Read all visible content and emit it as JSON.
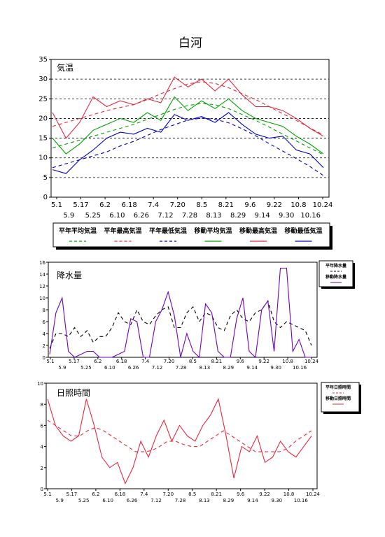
{
  "title": "白河",
  "chart_data": [
    {
      "type": "line",
      "title": "気温",
      "ylim": [
        0,
        35
      ],
      "yticks": [
        0,
        5,
        10,
        15,
        20,
        25,
        30,
        35
      ],
      "grid": "horizontal dashed at 5-unit intervals",
      "x": {
        "start": "5.1",
        "end": "10.31",
        "labels_upper": [
          "5.1",
          "5.17",
          "6.2",
          "6.18",
          "7.4",
          "7.20",
          "8.5",
          "8.21",
          "9.6",
          "9.22",
          "10.8",
          "10.24"
        ],
        "labels_lower": [
          "5.9",
          "5.25",
          "6.10",
          "6.26",
          "7.12",
          "7.28",
          "8.13",
          "8.29",
          "9.14",
          "9.30",
          "10.16"
        ]
      },
      "legend": {
        "placement": "bottom",
        "entries": [
          {
            "label": "平年平均気温",
            "color": "#00a000",
            "dash": true
          },
          {
            "label": "平年最高気温",
            "color": "#e8283c",
            "dash": true
          },
          {
            "label": "平年最低気温",
            "color": "#0000c8",
            "dash": true
          },
          {
            "label": "移動平均気温",
            "color": "#00a000",
            "dash": false
          },
          {
            "label": "移動最高気温",
            "color": "#e8283c",
            "dash": false
          },
          {
            "label": "移動最低気温",
            "color": "#0000c8",
            "dash": false
          }
        ]
      },
      "series": [
        {
          "name": "平年平均気温",
          "color": "#00a000",
          "dash": true,
          "values": [
            12.5,
            13.5,
            14.5,
            15.5,
            16.5,
            17.5,
            18.5,
            19.8,
            21.0,
            22.3,
            23.3,
            23.8,
            23.5,
            22.5,
            21.0,
            19.5,
            17.8,
            16.0,
            14.3,
            12.5,
            10.8
          ]
        },
        {
          "name": "平年最高気温",
          "color": "#e8283c",
          "dash": true,
          "values": [
            18.0,
            19.0,
            20.0,
            21.0,
            22.0,
            22.8,
            23.5,
            24.8,
            26.3,
            27.6,
            28.8,
            29.3,
            28.9,
            27.8,
            26.3,
            24.8,
            23.0,
            21.2,
            19.5,
            17.6,
            15.8
          ]
        },
        {
          "name": "平年最低気温",
          "color": "#0000c8",
          "dash": true,
          "values": [
            7.5,
            8.5,
            9.5,
            10.5,
            11.5,
            13.0,
            14.2,
            15.7,
            17.2,
            18.4,
            19.6,
            20.1,
            19.8,
            18.9,
            17.4,
            15.6,
            13.6,
            11.7,
            9.8,
            7.8,
            5.5
          ]
        },
        {
          "name": "移動平均気温",
          "color": "#00a000",
          "dash": false,
          "values": [
            15.0,
            11.0,
            13.5,
            17.0,
            18.5,
            20.0,
            19.0,
            21.5,
            19.5,
            25.5,
            22.0,
            24.5,
            22.5,
            25.0,
            22.0,
            20.0,
            19.0,
            18.0,
            15.5,
            13.5,
            11.0
          ]
        },
        {
          "name": "移動最高気温",
          "color": "#e8283c",
          "dash": false,
          "values": [
            21.5,
            15.0,
            19.0,
            25.5,
            23.0,
            24.5,
            23.5,
            25.0,
            24.0,
            30.5,
            28.0,
            30.0,
            27.0,
            30.0,
            26.0,
            23.0,
            23.0,
            22.0,
            20.0,
            17.5,
            15.5
          ]
        },
        {
          "name": "移動最低気温",
          "color": "#0000c8",
          "dash": false,
          "values": [
            7.0,
            6.0,
            9.5,
            12.0,
            15.0,
            16.5,
            16.0,
            17.5,
            16.5,
            21.0,
            19.5,
            20.5,
            19.0,
            21.5,
            18.5,
            16.0,
            15.0,
            15.5,
            12.0,
            11.0,
            7.5
          ]
        }
      ]
    },
    {
      "type": "line",
      "title": "降水量",
      "ylim": [
        0,
        16
      ],
      "yticks": [
        0,
        2,
        4,
        6,
        8,
        10,
        12,
        14,
        16
      ],
      "x": {
        "start": "5.1",
        "end": "10.31",
        "labels_upper": [
          "5.1",
          "5.17",
          "6.2",
          "6.18",
          "7.4",
          "7.20",
          "8.5",
          "8.21",
          "9.6",
          "9.22",
          "10.8",
          "10.24"
        ],
        "labels_lower": [
          "5.9",
          "5.25",
          "6.10",
          "6.26",
          "7.12",
          "7.28",
          "8.13",
          "8.29",
          "9.14",
          "9.30",
          "10.16"
        ]
      },
      "legend": {
        "placement": "right",
        "entries": [
          {
            "label": "平年降水量",
            "color": "#000000",
            "dash": true
          },
          {
            "label": "移動降水量",
            "color": "#7000c0",
            "dash": false
          }
        ]
      },
      "series": [
        {
          "name": "平年降水量",
          "color": "#000000",
          "dash": true,
          "values": [
            1.5,
            4.0,
            4.0,
            3.5,
            5.0,
            3.5,
            4.5,
            2.5,
            3.5,
            3.5,
            5.0,
            7.5,
            6.0,
            5.5,
            8.0,
            6.0,
            5.5,
            7.0,
            8.0,
            8.5,
            5.0,
            5.0,
            7.5,
            8.5,
            6.0,
            7.5,
            7.0,
            5.0,
            4.5,
            7.0,
            8.0,
            6.5,
            6.0,
            7.5,
            8.0,
            9.5,
            6.0,
            5.0,
            6.0,
            5.5,
            5.0,
            4.5,
            2.0
          ]
        },
        {
          "name": "移動降水量",
          "color": "#7000c0",
          "dash": false,
          "values": [
            0.5,
            7.5,
            10.0,
            1.0,
            0,
            0.5,
            1.0,
            1.0,
            0,
            0,
            0,
            0.5,
            1.0,
            6.5,
            6.0,
            0,
            0,
            6.0,
            8.0,
            11.0,
            7.0,
            0,
            4.0,
            1.0,
            0,
            9.0,
            7.5,
            1.0,
            0,
            0,
            6.5,
            10.0,
            1.0,
            0,
            8.0,
            9.5,
            1.0,
            15.0,
            15.0,
            1.0,
            3.0,
            0,
            0
          ]
        }
      ]
    },
    {
      "type": "line",
      "title": "日照時間",
      "ylim": [
        0,
        10
      ],
      "yticks": [
        0,
        2,
        4,
        6,
        8,
        10
      ],
      "x": {
        "start": "5.1",
        "end": "10.31",
        "labels_upper": [
          "5.1",
          "5.17",
          "6.2",
          "6.18",
          "7.4",
          "7.20",
          "8.5",
          "8.21",
          "9.6",
          "9.22",
          "10.8",
          "10.24"
        ],
        "labels_lower": [
          "5.9",
          "5.25",
          "6.10",
          "6.26",
          "7.12",
          "7.28",
          "8.13",
          "8.29",
          "9.14",
          "9.30",
          "10.16"
        ]
      },
      "legend": {
        "placement": "right",
        "entries": [
          {
            "label": "平年日照時間",
            "color": "#e8283c",
            "dash": true
          },
          {
            "label": "移動日照時間",
            "color": "#e8283c",
            "dash": false
          }
        ]
      },
      "series": [
        {
          "name": "平年日照時間",
          "color": "#e8283c",
          "dash": true,
          "values": [
            6.5,
            6.0,
            5.5,
            5.0,
            5.0,
            5.5,
            5.8,
            5.5,
            5.0,
            4.5,
            4.0,
            3.5,
            3.5,
            3.6,
            4.0,
            4.5,
            4.5,
            4.2,
            4.0,
            4.0,
            4.5,
            5.0,
            5.5,
            5.0,
            4.5,
            4.0,
            3.5,
            3.5,
            3.5,
            3.5,
            3.8,
            4.5,
            5.0,
            5.5
          ]
        },
        {
          "name": "移動日照時間",
          "color": "#e8283c",
          "dash": false,
          "values": [
            8.5,
            6.0,
            5.0,
            4.5,
            5.0,
            8.5,
            6.0,
            3.0,
            2.0,
            2.5,
            0.5,
            2.0,
            4.5,
            3.0,
            5.0,
            6.5,
            4.5,
            6.0,
            5.0,
            4.5,
            6.0,
            7.0,
            8.5,
            5.0,
            1.0,
            4.0,
            3.5,
            5.0,
            2.5,
            3.0,
            4.5,
            3.5,
            3.0,
            4.0,
            5.0
          ]
        }
      ]
    }
  ]
}
